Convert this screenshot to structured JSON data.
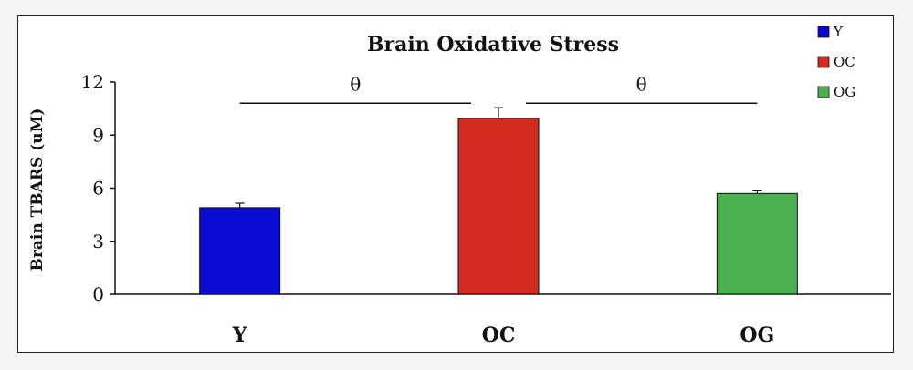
{
  "chart_data": {
    "type": "bar",
    "title": "Brain Oxidative Stress",
    "ylabel": "Brain TBARS (uM)",
    "xlabel": "",
    "categories": [
      "Y",
      "OC",
      "OG"
    ],
    "values": [
      4.9,
      9.95,
      5.7
    ],
    "errors": [
      0.25,
      0.6,
      0.15
    ],
    "colors": [
      "#0a0ad2",
      "#d42b20",
      "#4caf50"
    ],
    "ylim": [
      0,
      12
    ],
    "yticks": [
      "0",
      "3",
      "6",
      "9",
      "12"
    ],
    "grid": false,
    "legend": {
      "placement": "top-right",
      "entries": [
        "Y",
        "OC",
        "OG"
      ]
    },
    "significance": [
      {
        "from": 0,
        "to": 1,
        "label": "θ",
        "level": 10.8
      },
      {
        "from": 1,
        "to": 2,
        "label": "θ",
        "level": 10.8
      }
    ]
  }
}
